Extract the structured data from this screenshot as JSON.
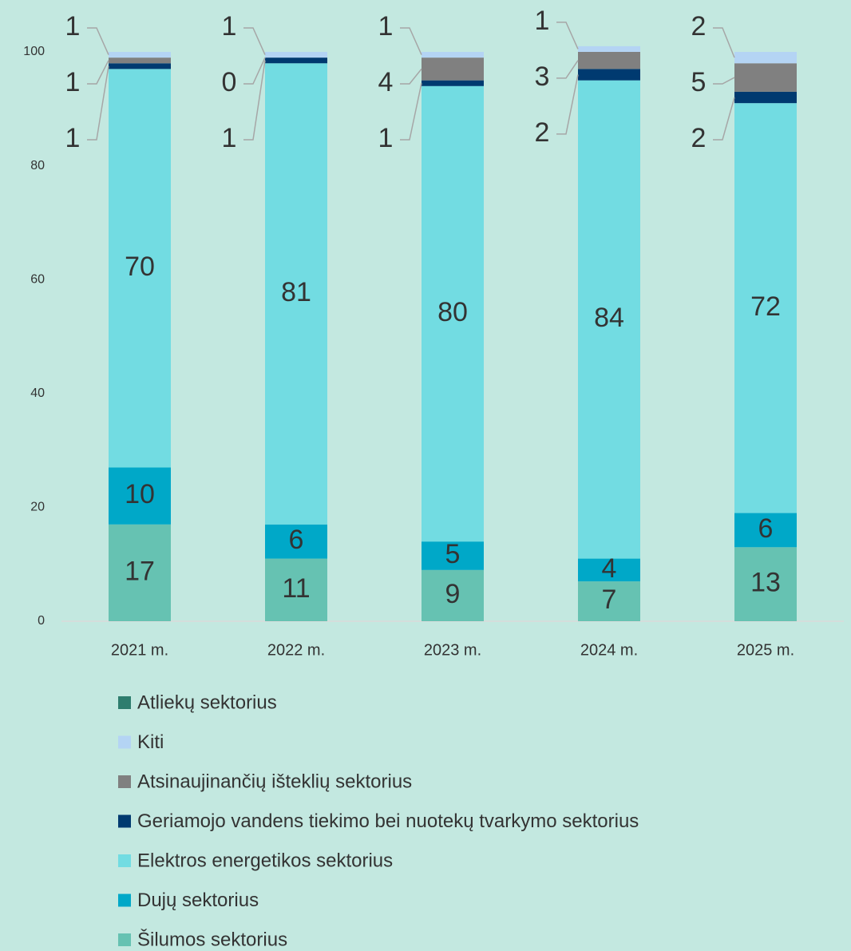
{
  "chart_data": {
    "type": "stacked_bar",
    "categories": [
      "2021 m.",
      "2022 m.",
      "2023 m.",
      "2024 m.",
      "2025 m."
    ],
    "series": [
      {
        "name": "Šilumos sektorius",
        "color": "#66c2b2",
        "values": [
          17,
          11,
          9,
          7,
          13
        ]
      },
      {
        "name": "Dujų sektorius",
        "color": "#00a8c8",
        "values": [
          10,
          6,
          5,
          4,
          6
        ]
      },
      {
        "name": "Elektros energetikos sektorius",
        "color": "#72dce2",
        "values": [
          70,
          81,
          80,
          84,
          72
        ]
      },
      {
        "name": "Geriamojo vandens tiekimo bei nuotekų tvarkymo sektorius",
        "color": "#003a70",
        "values": [
          1,
          1,
          1,
          2,
          2
        ]
      },
      {
        "name": "Atsinaujinančių išteklių sektorius",
        "color": "#808080",
        "values": [
          1,
          0,
          4,
          3,
          5
        ]
      },
      {
        "name": "Kiti",
        "color": "#b4d4f4",
        "values": [
          1,
          1,
          1,
          1,
          2
        ]
      },
      {
        "name": "Atliekų sektorius",
        "color": "#2e7d6e",
        "values": [
          null,
          null,
          null,
          null,
          null
        ]
      }
    ],
    "ylim": [
      0,
      100
    ],
    "yticks": [
      0,
      20,
      40,
      60,
      80,
      100
    ],
    "grid": false,
    "legend": "bottom"
  }
}
